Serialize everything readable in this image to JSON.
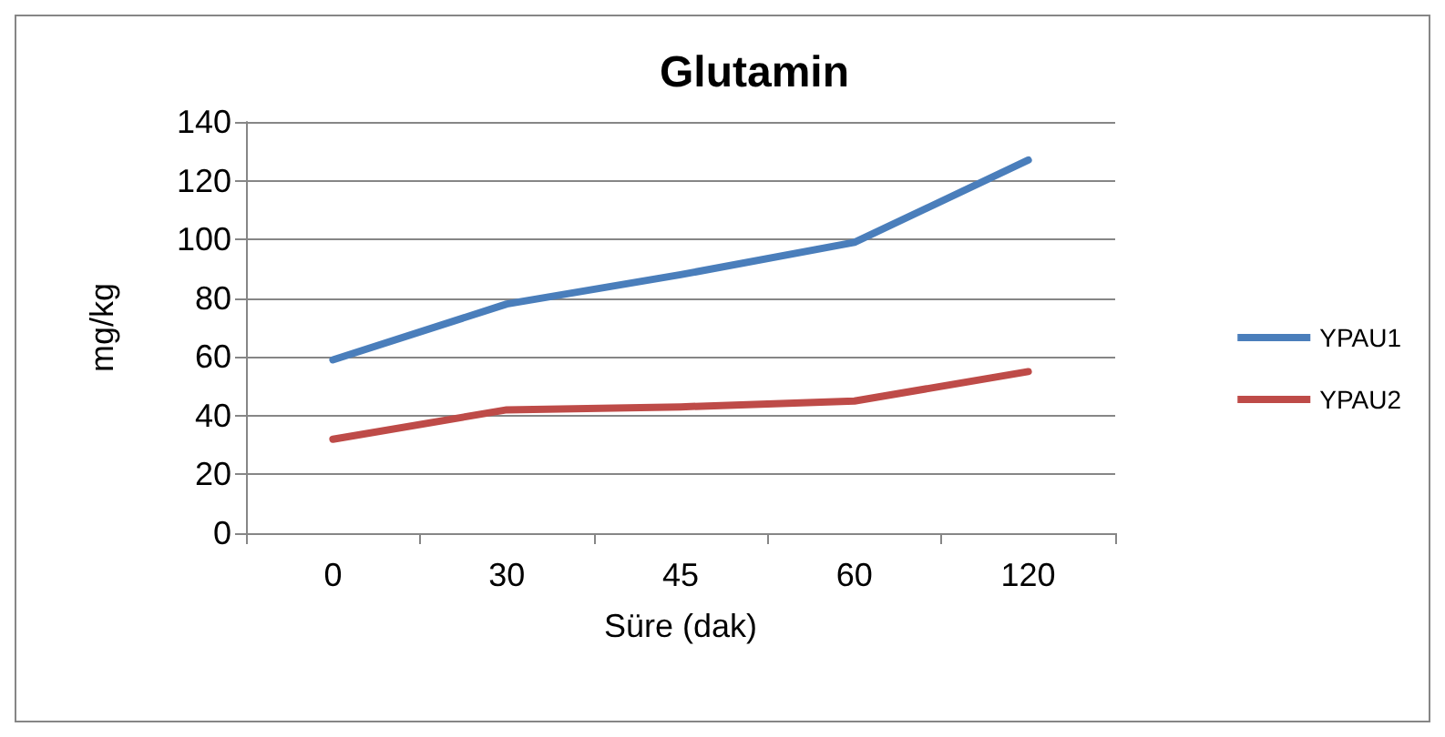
{
  "chart_data": {
    "type": "line",
    "title": "Glutamin",
    "xlabel": "Süre (dak)",
    "ylabel": "mg/kg",
    "categories": [
      "0",
      "30",
      "45",
      "60",
      "120"
    ],
    "series": [
      {
        "name": "YPAU1",
        "color": "#4a7ebb",
        "values": [
          59,
          78,
          88,
          99,
          127
        ]
      },
      {
        "name": "YPAU2",
        "color": "#be4b48",
        "values": [
          32,
          42,
          43,
          45,
          55
        ]
      }
    ],
    "ylim": [
      0,
      140
    ],
    "yticks": [
      0,
      20,
      40,
      60,
      80,
      100,
      120,
      140
    ],
    "grid": "y",
    "legend": "right",
    "marker": "none",
    "line_style": "solid"
  }
}
